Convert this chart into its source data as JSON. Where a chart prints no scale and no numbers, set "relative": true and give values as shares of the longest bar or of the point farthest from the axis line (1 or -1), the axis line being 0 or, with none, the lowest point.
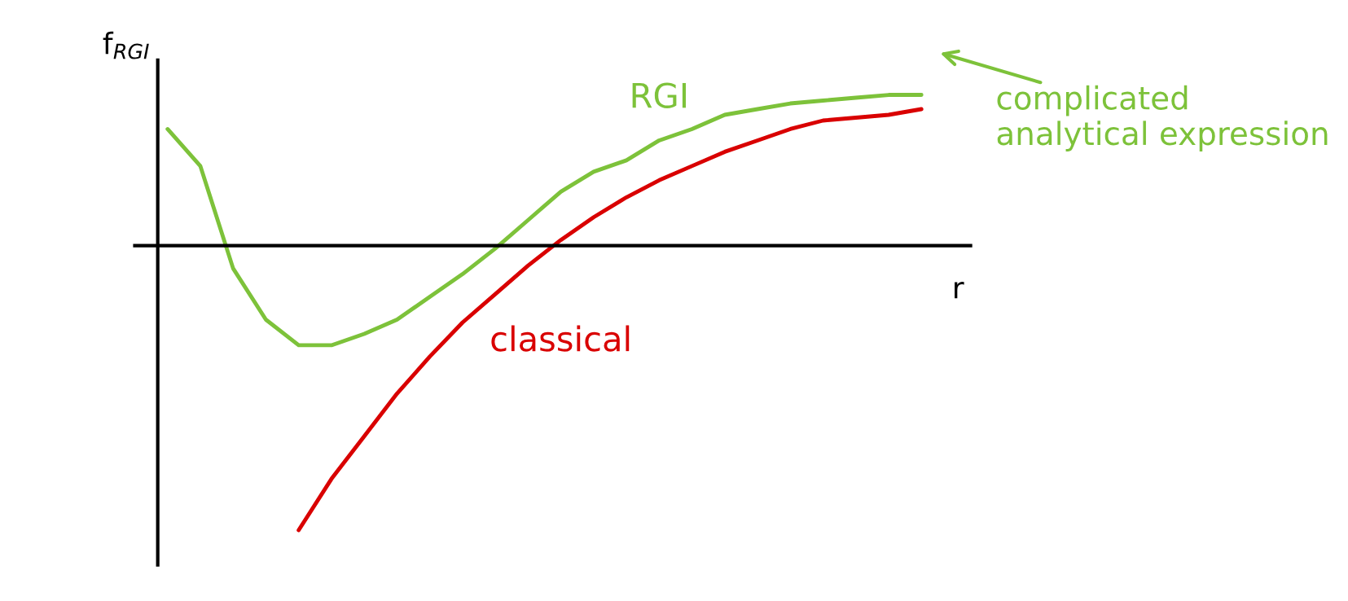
{
  "chart_data": {
    "type": "line",
    "relative": true,
    "xlabel": "r",
    "ylabel": "f$_{RGI}$",
    "legend": false,
    "categories": [
      null,
      null,
      null,
      null,
      null,
      null,
      null,
      null,
      null,
      null,
      null,
      null,
      null,
      null,
      null,
      null,
      null,
      null,
      null,
      null,
      null,
      null,
      null,
      null
    ],
    "series": [
      {
        "name": "RGI",
        "color": "#7dc23a",
        "values": [
          0.41,
          0.28,
          -0.08,
          -0.26,
          -0.35,
          -0.35,
          -0.31,
          -0.26,
          -0.18,
          -0.1,
          -0.01,
          0.09,
          0.19,
          0.26,
          0.3,
          0.37,
          0.41,
          0.46,
          0.48,
          0.5,
          0.51,
          0.52,
          0.53,
          0.53
        ]
      },
      {
        "name": "classical",
        "color": "#d90000",
        "values": [
          null,
          null,
          null,
          null,
          -1.0,
          -0.82,
          -0.67,
          -0.52,
          -0.39,
          -0.27,
          -0.17,
          -0.07,
          0.02,
          0.1,
          0.17,
          0.23,
          0.28,
          0.33,
          0.37,
          0.41,
          0.44,
          0.45,
          0.46,
          0.48
        ]
      }
    ],
    "annotations": [
      "complicated analytical expression"
    ]
  }
}
